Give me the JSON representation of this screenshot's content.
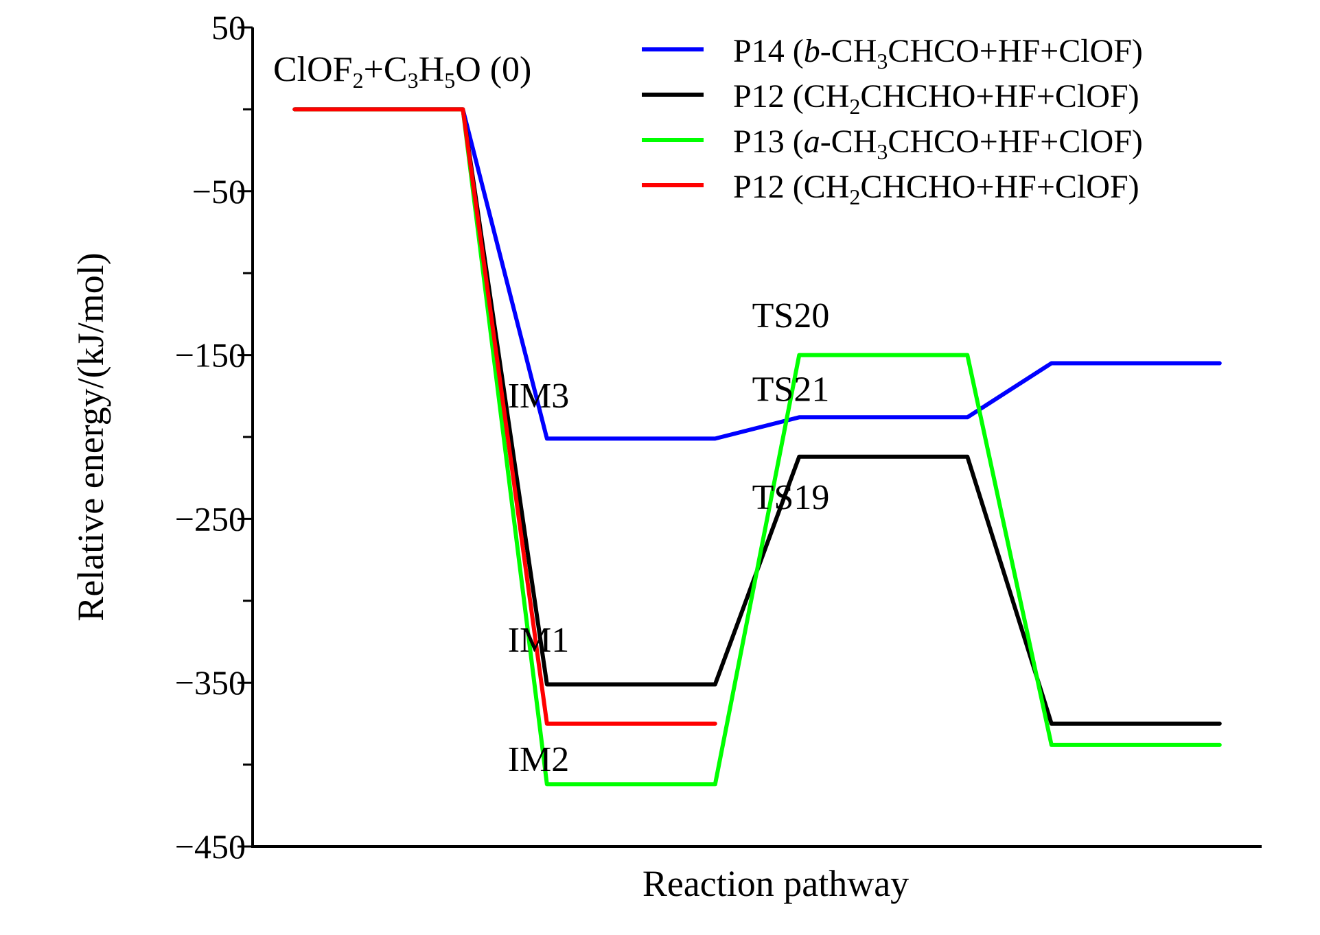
{
  "chart_data": {
    "type": "line",
    "title": "",
    "xlabel": "Reaction pathway",
    "ylabel": "Relative energy/(kJ/mol)",
    "ylim": [
      -450,
      50
    ],
    "yticks": [
      50,
      -50,
      -150,
      -250,
      -350,
      -450
    ],
    "ytick_labels": [
      "50",
      "−50",
      "−150",
      "−250",
      "−350",
      "−450"
    ],
    "grid": false,
    "legend_position": "top-right",
    "reactant_label": {
      "parts": [
        [
          "ClOF",
          ""
        ],
        [
          "2",
          "sub"
        ],
        [
          "+C",
          ""
        ],
        [
          "3",
          "sub"
        ],
        [
          "H",
          ""
        ],
        [
          "5",
          "sub"
        ],
        [
          "O (0)",
          ""
        ]
      ]
    },
    "state_labels": [
      {
        "text": "IM3",
        "x": 3.4,
        "y": -182
      },
      {
        "text": "IM1",
        "x": 3.4,
        "y": -331
      },
      {
        "text": "IM2",
        "x": 3.4,
        "y": -404
      },
      {
        "text": "TS20",
        "x": 6.4,
        "y": -133
      },
      {
        "text": "TS21",
        "x": 6.4,
        "y": -178
      },
      {
        "text": "TS19",
        "x": 6.4,
        "y": -244
      }
    ],
    "series": [
      {
        "name": "P14 (b-CH3CHCO+HF+ClOF)",
        "color": "#0000ff",
        "points": [
          [
            0.5,
            0
          ],
          [
            2.5,
            0
          ],
          [
            3.5,
            -201
          ],
          [
            5.5,
            -201
          ],
          [
            6.5,
            -188
          ],
          [
            8.5,
            -188
          ],
          [
            9.5,
            -155
          ],
          [
            11.5,
            -155
          ]
        ],
        "legend_parts": [
          [
            "P14 (",
            ""
          ],
          [
            "b",
            "i"
          ],
          [
            "-CH",
            ""
          ],
          [
            "3",
            "sub"
          ],
          [
            "CHCO+HF+ClOF)",
            ""
          ]
        ]
      },
      {
        "name": "P12 (CH2CHCHO+HF+ClOF)",
        "color": "#000000",
        "points": [
          [
            0.5,
            0
          ],
          [
            2.5,
            0
          ],
          [
            3.5,
            -351
          ],
          [
            5.5,
            -351
          ],
          [
            6.5,
            -212
          ],
          [
            8.5,
            -212
          ],
          [
            9.5,
            -375
          ],
          [
            11.5,
            -375
          ]
        ],
        "legend_parts": [
          [
            "P12 (CH",
            ""
          ],
          [
            "2",
            "sub"
          ],
          [
            "CHCHO+HF+ClOF)",
            ""
          ]
        ]
      },
      {
        "name": "P13 (a-CH3CHCO+HF+ClOF)",
        "color": "#00ff00",
        "points": [
          [
            0.5,
            0
          ],
          [
            2.5,
            0
          ],
          [
            3.5,
            -412
          ],
          [
            5.5,
            -412
          ],
          [
            6.5,
            -150
          ],
          [
            8.5,
            -150
          ],
          [
            9.5,
            -388
          ],
          [
            11.5,
            -388
          ]
        ],
        "legend_parts": [
          [
            "P13 (",
            ""
          ],
          [
            "a",
            "i"
          ],
          [
            "-CH",
            ""
          ],
          [
            "3",
            "sub"
          ],
          [
            "CHCO+HF+ClOF)",
            ""
          ]
        ]
      },
      {
        "name": "P12 (CH2CHCHO+HF+ClOF)",
        "color": "#ff0000",
        "points": [
          [
            0.5,
            0
          ],
          [
            2.5,
            0
          ],
          [
            3.5,
            -375
          ],
          [
            5.5,
            -375
          ]
        ],
        "legend_parts": [
          [
            "P12 (CH",
            ""
          ],
          [
            "2",
            "sub"
          ],
          [
            "CHCHO+HF+ClOF)",
            ""
          ]
        ]
      }
    ]
  }
}
